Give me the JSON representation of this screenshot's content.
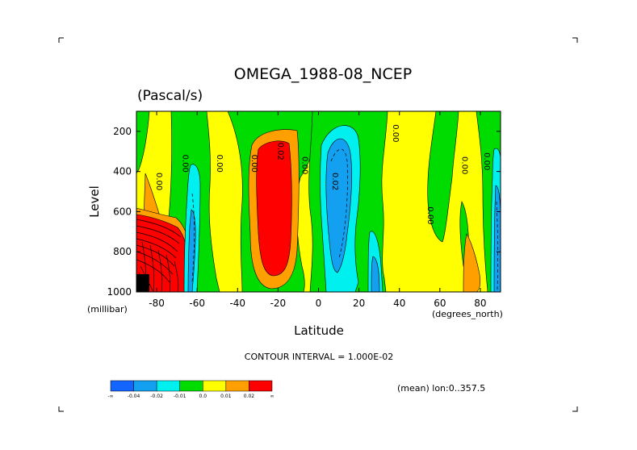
{
  "chart_data": {
    "type": "contour",
    "title": "OMEGA_1988-08_NCEP",
    "units": "(Pascal/s)",
    "xlabel": "Latitude",
    "xunits": "(degrees_north)",
    "ylabel": "Level",
    "yunits": "(millibar)",
    "xlim": [
      -90,
      90
    ],
    "ylim": [
      1000,
      100
    ],
    "x_ticks": [
      -80,
      -60,
      -40,
      -20,
      0,
      20,
      40,
      60,
      80
    ],
    "y_ticks": [
      200,
      400,
      600,
      800,
      1000
    ],
    "contour_interval_text": "CONTOUR INTERVAL = 1.000E-02",
    "footnote": "(mean) lon:0..357.5",
    "colorbar": {
      "colors": [
        "#1464ff",
        "#14a0f0",
        "#00f0f0",
        "#00dc00",
        "#ffff00",
        "#ffa000",
        "#ff0000"
      ],
      "labels": [
        "-∞",
        "-0.04",
        "-0.02",
        "-0.01",
        "0.0",
        "0.01",
        "0.02",
        "∞"
      ]
    },
    "contour_labels": [
      {
        "text": "0.00",
        "lat": -80,
        "lev": 450
      },
      {
        "text": "0.00",
        "lat": -67,
        "lev": 360
      },
      {
        "text": "0.00",
        "lat": -50,
        "lev": 360
      },
      {
        "text": "0.00",
        "lat": -33,
        "lev": 360
      },
      {
        "text": "0.02",
        "lat": -20,
        "lev": 300
      },
      {
        "text": "0.00",
        "lat": -8,
        "lev": 370
      },
      {
        "text": "0.02",
        "lat": 7,
        "lev": 450
      },
      {
        "text": "0.00",
        "lat": 37,
        "lev": 210
      },
      {
        "text": "0.00",
        "lat": 54,
        "lev": 620
      },
      {
        "text": "0.00",
        "lat": 71,
        "lev": 370
      },
      {
        "text": "0.00",
        "lat": 82,
        "lev": 350
      }
    ]
  }
}
